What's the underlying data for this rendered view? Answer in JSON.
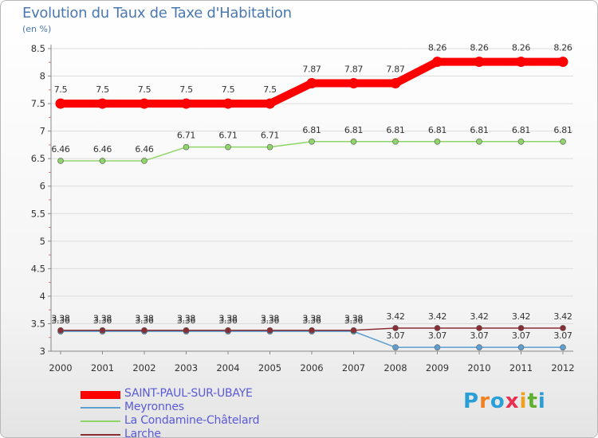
{
  "title": "Evolution du Taux de Taxe d'Habitation",
  "subtitle": "(en %)",
  "logo": {
    "text": "Proxiti",
    "colors": [
      "#2a9fd6",
      "#f08020",
      "#2aa0d8",
      "#e83050",
      "#f0a020",
      "#60b030",
      "#2a9fd6"
    ]
  },
  "chart_data": {
    "type": "line",
    "title": "Evolution du Taux de Taxe d'Habitation",
    "ylabel": "(en %)",
    "xlabel": "",
    "ylim": [
      3,
      8.5
    ],
    "yticks": [
      "3",
      "3.5",
      "4",
      "4.5",
      "5",
      "5.5",
      "6",
      "6.5",
      "7",
      "7.5",
      "8",
      "8.5"
    ],
    "ytick_values": [
      3,
      3.5,
      4,
      4.5,
      5,
      5.5,
      6,
      6.5,
      7,
      7.5,
      8,
      8.5
    ],
    "categories": [
      "2000",
      "2001",
      "2002",
      "2003",
      "2004",
      "2005",
      "2006",
      "2007",
      "2008",
      "2009",
      "2010",
      "2011",
      "2012"
    ],
    "series": [
      {
        "name": "SAINT-PAUL-SUR-UBAYE",
        "color": "#ff0000",
        "values": [
          7.5,
          7.5,
          7.5,
          7.5,
          7.5,
          7.5,
          7.87,
          7.87,
          7.87,
          8.26,
          8.26,
          8.26,
          8.26
        ],
        "labels": [
          "7.5",
          "7.5",
          "7.5",
          "7.5",
          "7.5",
          "7.5",
          "7.87",
          "7.87",
          "7.87",
          "8.26",
          "8.26",
          "8.26",
          "8.26"
        ]
      },
      {
        "name": "Meyronnes",
        "color": "#5c9fd0",
        "values": [
          3.36,
          3.36,
          3.36,
          3.36,
          3.36,
          3.36,
          3.36,
          3.36,
          3.07,
          3.07,
          3.07,
          3.07,
          3.07
        ],
        "labels": [
          "3.36",
          "3.36",
          "3.36",
          "3.36",
          "3.36",
          "3.36",
          "3.36",
          "3.36",
          "3.07",
          "3.07",
          "3.07",
          "3.07",
          "3.07"
        ]
      },
      {
        "name": "La Condamine-Châtelard",
        "color": "#8fd468",
        "values": [
          6.46,
          6.46,
          6.46,
          6.71,
          6.71,
          6.71,
          6.81,
          6.81,
          6.81,
          6.81,
          6.81,
          6.81,
          6.81
        ],
        "labels": [
          "6.46",
          "6.46",
          "6.46",
          "6.71",
          "6.71",
          "6.71",
          "6.81",
          "6.81",
          "6.81",
          "6.81",
          "6.81",
          "6.81",
          "6.81"
        ]
      },
      {
        "name": "Larche",
        "color": "#8b2e34",
        "values": [
          3.38,
          3.38,
          3.38,
          3.38,
          3.38,
          3.38,
          3.38,
          3.38,
          3.42,
          3.42,
          3.42,
          3.42,
          3.42
        ],
        "labels": [
          "3.38",
          "3.38",
          "3.38",
          "3.38",
          "3.38",
          "3.38",
          "3.38",
          "3.38",
          "3.42",
          "3.42",
          "3.42",
          "3.42",
          "3.42"
        ]
      }
    ],
    "legend": [
      "SAINT-PAUL-SUR-UBAYE",
      "Meyronnes",
      "La Condamine-Châtelard",
      "Larche"
    ]
  }
}
